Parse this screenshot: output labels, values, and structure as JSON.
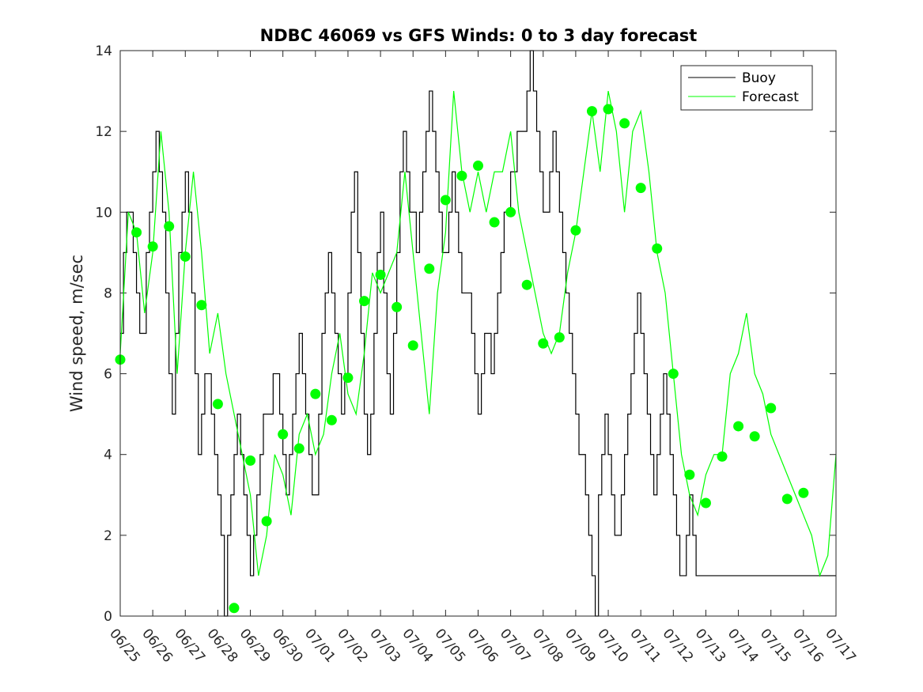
{
  "chart_data": {
    "type": "line",
    "title": "NDBC 46069 vs GFS Winds: 0 to 3 day forecast",
    "xlabel": "",
    "ylabel": "Wind speed, m/sec",
    "ylim": [
      0,
      14
    ],
    "yticks": [
      "0",
      "2",
      "4",
      "6",
      "8",
      "10",
      "12",
      "14"
    ],
    "xlim": [
      "06/25",
      "07/17"
    ],
    "categories": [
      "06/25",
      "06/26",
      "06/27",
      "06/28",
      "06/29",
      "06/30",
      "07/01",
      "07/02",
      "07/03",
      "07/04",
      "07/05",
      "07/06",
      "07/07",
      "07/08",
      "07/09",
      "07/10",
      "07/11",
      "07/12",
      "07/13",
      "07/14",
      "07/15",
      "07/16",
      "07/17"
    ],
    "grid": false,
    "legend": {
      "position": "top-right",
      "entries": [
        "Buoy",
        "Forecast"
      ]
    },
    "colors": {
      "buoy": "#000000",
      "forecast": "#00ff00"
    },
    "series": [
      {
        "name": "Buoy",
        "x": [
          0,
          0.1,
          0.2,
          0.3,
          0.4,
          0.5,
          0.6,
          0.7,
          0.8,
          0.9,
          1.0,
          1.1,
          1.2,
          1.3,
          1.4,
          1.5,
          1.6,
          1.7,
          1.8,
          1.9,
          2.0,
          2.1,
          2.2,
          2.3,
          2.4,
          2.5,
          2.6,
          2.7,
          2.8,
          2.9,
          3.0,
          3.1,
          3.2,
          3.3,
          3.4,
          3.5,
          3.6,
          3.7,
          3.8,
          3.9,
          4.0,
          4.1,
          4.2,
          4.3,
          4.4,
          4.5,
          4.6,
          4.7,
          4.8,
          4.9,
          5.0,
          5.1,
          5.2,
          5.3,
          5.4,
          5.5,
          5.6,
          5.7,
          5.8,
          5.9,
          6.0,
          6.1,
          6.2,
          6.3,
          6.4,
          6.5,
          6.6,
          6.7,
          6.8,
          6.9,
          7.0,
          7.1,
          7.2,
          7.3,
          7.4,
          7.5,
          7.6,
          7.7,
          7.8,
          7.9,
          8.0,
          8.1,
          8.2,
          8.3,
          8.4,
          8.5,
          8.6,
          8.7,
          8.8,
          8.9,
          9.0,
          9.1,
          9.2,
          9.3,
          9.4,
          9.5,
          9.6,
          9.7,
          9.8,
          9.9,
          10.0,
          10.1,
          10.2,
          10.3,
          10.4,
          10.5,
          10.6,
          10.7,
          10.8,
          10.9,
          11.0,
          11.1,
          11.2,
          11.3,
          11.4,
          11.5,
          11.6,
          11.7,
          11.8,
          11.9,
          12.0,
          12.1,
          12.2,
          12.3,
          12.4,
          12.5,
          12.6,
          12.7,
          12.8,
          12.9,
          13.0,
          13.1,
          13.2,
          13.3,
          13.4,
          13.5,
          13.6,
          13.7,
          13.8,
          13.9,
          14.0,
          14.1,
          14.2,
          14.3,
          14.4,
          14.5,
          14.6,
          14.7,
          14.8,
          14.9,
          15.0,
          15.1,
          15.2,
          15.3,
          15.4,
          15.5,
          15.6,
          15.7,
          15.8,
          15.9,
          16.0,
          16.1,
          16.2,
          16.3,
          16.4,
          16.5,
          16.6,
          16.7,
          16.8,
          16.9,
          17.0,
          17.1,
          17.2,
          17.3,
          17.4,
          17.5,
          17.6,
          17.7,
          17.8,
          17.9,
          18.0,
          18.1,
          18.2,
          18.3,
          18.4,
          18.5,
          18.6,
          18.7,
          18.8,
          18.9,
          19.0,
          19.1,
          19.2,
          19.3,
          19.4,
          19.5,
          19.6,
          19.7,
          19.8,
          19.9,
          20.0,
          20.1,
          20.2,
          20.3,
          20.4,
          20.5,
          20.6,
          20.7,
          20.8,
          20.9,
          21.0,
          21.1,
          21.2,
          21.3,
          21.4,
          21.5,
          21.6,
          21.7,
          21.8,
          21.9,
          22.0
        ],
        "values": [
          7,
          9,
          10,
          10,
          9,
          8,
          7,
          7,
          9,
          10,
          11,
          12,
          11,
          10,
          8,
          6,
          5,
          7,
          9,
          10,
          11,
          10,
          8,
          6,
          4,
          5,
          6,
          6,
          5,
          4,
          3,
          2,
          0,
          2,
          3,
          4,
          5,
          4,
          3,
          2,
          1,
          2,
          3,
          4,
          5,
          5,
          5,
          6,
          6,
          5,
          4,
          3,
          4,
          5,
          6,
          7,
          6,
          5,
          4,
          3,
          3,
          5,
          7,
          8,
          9,
          8,
          7,
          6,
          5,
          6,
          8,
          10,
          11,
          9,
          7,
          5,
          4,
          5,
          7,
          9,
          10,
          8,
          6,
          5,
          7,
          9,
          11,
          12,
          11,
          10,
          10,
          9,
          10,
          11,
          12,
          13,
          12,
          11,
          10,
          9,
          9,
          10,
          11,
          10,
          9,
          8,
          8,
          8,
          7,
          6,
          5,
          6,
          7,
          7,
          6,
          7,
          8,
          9,
          10,
          10,
          11,
          11,
          12,
          12,
          12,
          13,
          14,
          13,
          12,
          11,
          10,
          10,
          11,
          12,
          11,
          10,
          9,
          8,
          7,
          6,
          5,
          4,
          4,
          3,
          2,
          1,
          0,
          3,
          4,
          5,
          4,
          3,
          2,
          2,
          3,
          4,
          5,
          6,
          7,
          8,
          7,
          6,
          5,
          4,
          3,
          4,
          5,
          6,
          5,
          4,
          3,
          2,
          1,
          1,
          2,
          3,
          2,
          1,
          1,
          1,
          1,
          1,
          1,
          1,
          1,
          1,
          1,
          1,
          1,
          1,
          1,
          1,
          1,
          1,
          1,
          1,
          1,
          1,
          1,
          1,
          1,
          1,
          1,
          1,
          1,
          1,
          1,
          1,
          1,
          1,
          1,
          1,
          1,
          1,
          1,
          1,
          1,
          1,
          1,
          1,
          1
        ]
      },
      {
        "name": "Forecast",
        "x": [
          0,
          0.25,
          0.5,
          0.75,
          1.0,
          1.25,
          1.5,
          1.75,
          2.0,
          2.25,
          2.5,
          2.75,
          3.0,
          3.25,
          3.5,
          3.75,
          4.0,
          4.25,
          4.5,
          4.75,
          5.0,
          5.25,
          5.5,
          5.75,
          6.0,
          6.25,
          6.5,
          6.75,
          7.0,
          7.25,
          7.5,
          7.75,
          8.0,
          8.25,
          8.5,
          8.75,
          9.0,
          9.25,
          9.5,
          9.75,
          10.0,
          10.25,
          10.5,
          10.75,
          11.0,
          11.25,
          11.5,
          11.75,
          12.0,
          12.25,
          12.5,
          12.75,
          13.0,
          13.25,
          13.5,
          13.75,
          14.0,
          14.25,
          14.5,
          14.75,
          15.0,
          15.25,
          15.5,
          15.75,
          16.0,
          16.25,
          16.5,
          16.75,
          17.0,
          17.25,
          17.5,
          17.75,
          18.0,
          18.25,
          18.5,
          18.75,
          19.0,
          19.25,
          19.5,
          19.75,
          20.0,
          20.25,
          20.5,
          20.75,
          21.0,
          21.25,
          21.5,
          21.75,
          22.0
        ],
        "values": [
          6.5,
          10,
          9.5,
          7.5,
          9,
          12,
          10,
          6,
          9,
          11,
          9,
          6.5,
          7.5,
          6,
          5,
          4,
          3,
          1,
          2,
          4,
          3.5,
          2.5,
          4.5,
          5,
          4,
          4.5,
          6,
          7,
          5.5,
          5,
          6.5,
          8.5,
          8,
          8.5,
          9,
          11,
          9,
          7,
          5,
          8,
          9.5,
          13,
          11,
          10,
          11,
          10,
          11,
          11,
          12,
          10,
          9,
          8,
          7,
          6.5,
          7,
          8.5,
          9.5,
          11,
          12.5,
          11,
          13,
          12,
          10,
          12,
          12.5,
          11,
          9,
          8,
          6,
          4,
          3,
          2.5,
          3.5,
          4,
          4,
          6,
          6.5,
          7.5,
          6,
          5.5,
          4.5,
          4,
          3.5,
          3,
          2.5,
          2,
          1,
          1.5,
          4
        ]
      }
    ],
    "markers": {
      "name": "Forecast",
      "x": [
        0,
        0.5,
        1.0,
        1.5,
        2.0,
        2.5,
        3.0,
        3.5,
        4.0,
        4.5,
        5.0,
        5.5,
        6.0,
        6.5,
        7.0,
        7.5,
        8.0,
        8.5,
        9.0,
        9.5,
        10.0,
        10.5,
        11.0,
        11.5,
        12.0,
        12.5,
        13.0,
        13.5,
        14.0,
        14.5,
        15.0,
        15.5,
        16.0,
        16.5,
        17.0,
        17.5,
        18.0,
        18.5,
        19.0,
        19.5,
        20.0,
        20.5,
        21.0
      ],
      "values": [
        6.35,
        9.5,
        9.15,
        9.65,
        8.9,
        7.7,
        5.25,
        0.2,
        3.85,
        2.35,
        4.5,
        4.15,
        5.5,
        4.85,
        5.9,
        7.8,
        8.45,
        7.65,
        6.7,
        8.6,
        10.3,
        10.9,
        11.15,
        9.75,
        10.0,
        8.2,
        6.75,
        6.9,
        9.55,
        12.5,
        12.55,
        12.2,
        10.6,
        9.1,
        6.0,
        3.5,
        2.8,
        3.95,
        4.7,
        4.45,
        5.15,
        2.9,
        3.05
      ]
    }
  }
}
